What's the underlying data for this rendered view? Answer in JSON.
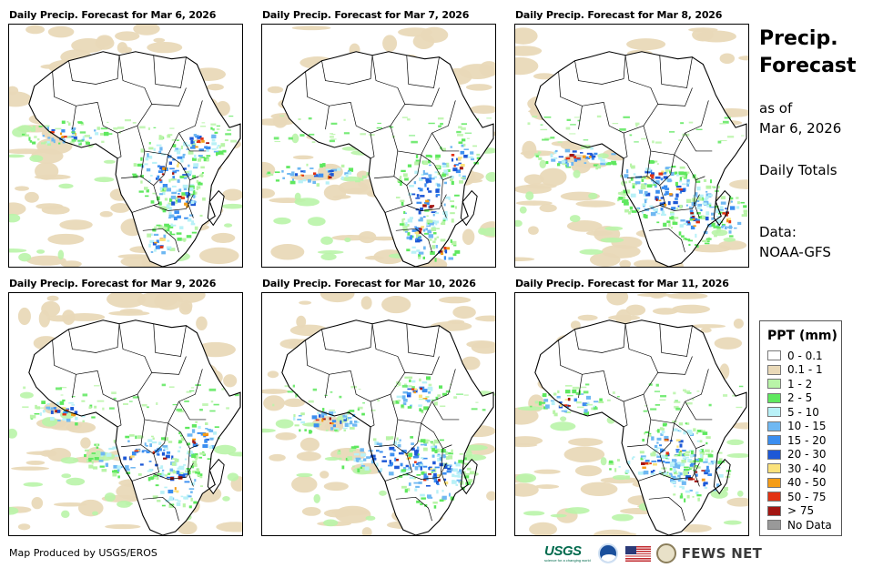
{
  "panels": [
    {
      "title": "Daily Precip. Forecast for Mar 6, 2026"
    },
    {
      "title": "Daily Precip. Forecast for Mar 7, 2026"
    },
    {
      "title": "Daily Precip. Forecast for Mar 8, 2026"
    },
    {
      "title": "Daily Precip. Forecast for Mar 9, 2026"
    },
    {
      "title": "Daily Precip. Forecast for Mar 10, 2026"
    },
    {
      "title": "Daily Precip. Forecast for Mar 11, 2026"
    }
  ],
  "sidebar": {
    "title_line1": "Precip.",
    "title_line2": "Forecast",
    "as_of_label": "as of",
    "as_of_date": "Mar 6, 2026",
    "totals_label": "Daily Totals",
    "data_label": "Data:",
    "data_source": "NOAA-GFS"
  },
  "legend": {
    "title": "PPT (mm)",
    "items": [
      {
        "label": "0 - 0.1",
        "color": "#ffffff"
      },
      {
        "label": "0.1 - 1",
        "color": "#e9d9b8"
      },
      {
        "label": "1 - 2",
        "color": "#b9f4a8"
      },
      {
        "label": "2 - 5",
        "color": "#5fe85f"
      },
      {
        "label": "5 - 10",
        "color": "#b8f1f7"
      },
      {
        "label": "10 - 15",
        "color": "#6fb8f2"
      },
      {
        "label": "15 - 20",
        "color": "#3b8ef0"
      },
      {
        "label": "20 - 30",
        "color": "#1d58d6"
      },
      {
        "label": "30 - 40",
        "color": "#fbe27c"
      },
      {
        "label": "40 - 50",
        "color": "#f59c16"
      },
      {
        "label": "50 - 75",
        "color": "#e23212"
      },
      {
        "label": "> 75",
        "color": "#a31612"
      },
      {
        "label": "No Data",
        "color": "#999999"
      }
    ]
  },
  "footer": {
    "credit": "Map Produced by USGS/EROS",
    "usgs_logo": "USGS",
    "usgs_tagline": "science for a changing world",
    "noaa_icon": "noaa-logo-icon",
    "flag_icon": "us-flag-icon",
    "seal_icon": "state-department-seal-icon",
    "fews_logo": "FEWS NET"
  },
  "regions": {
    "land_color": "#ffffff",
    "outline_color": "#000000"
  }
}
